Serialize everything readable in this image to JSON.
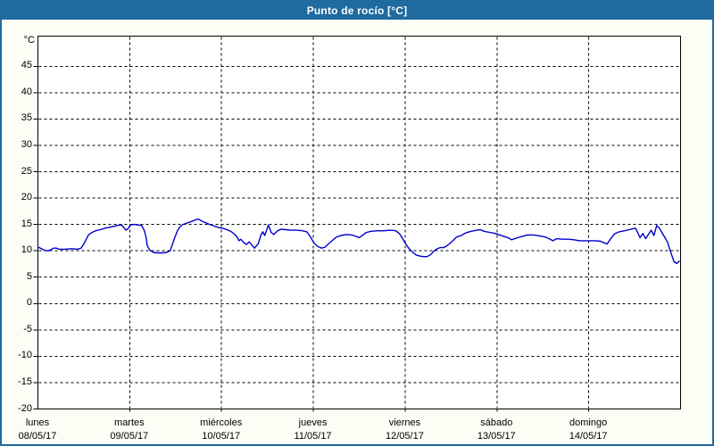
{
  "window": {
    "title": "Punto de rocío [°C]"
  },
  "colors": {
    "titlebar_bg": "#1F6A9F",
    "window_border": "#1F6A9F",
    "title_text": "#FFFFFF",
    "panel_bg": "#FCFDF5",
    "plot_bg": "#FFFFFF",
    "grid": "#000000",
    "axis_text": "#000000",
    "series_line": "#0000CC"
  },
  "chart_data": {
    "type": "line",
    "title": "Punto de rocío [°C]",
    "ylabel": "°C",
    "ylim": [
      -20,
      50
    ],
    "y_ticks": [
      45,
      40,
      35,
      30,
      25,
      20,
      15,
      10,
      5,
      0,
      -5,
      -10,
      -15,
      -20
    ],
    "grid": "dashed",
    "legend": "none",
    "x_axis": {
      "range_days": [
        0,
        7
      ],
      "days": [
        {
          "name": "lunes",
          "date": "08/05/17"
        },
        {
          "name": "martes",
          "date": "09/05/17"
        },
        {
          "name": "miércoles",
          "date": "10/05/17"
        },
        {
          "name": "jueves",
          "date": "11/05/17"
        },
        {
          "name": "viernes",
          "date": "12/05/17"
        },
        {
          "name": "sábado",
          "date": "13/05/17"
        },
        {
          "name": "domingo",
          "date": "14/05/17"
        }
      ]
    },
    "series": [
      {
        "name": "Punto de rocío",
        "color": "#0000CC",
        "points": [
          [
            0.0,
            10.7
          ],
          [
            0.04,
            10.4
          ],
          [
            0.07,
            10.1
          ],
          [
            0.11,
            10.0
          ],
          [
            0.14,
            10.2
          ],
          [
            0.17,
            10.5
          ],
          [
            0.2,
            10.5
          ],
          [
            0.23,
            10.3
          ],
          [
            0.29,
            10.3
          ],
          [
            0.37,
            10.4
          ],
          [
            0.43,
            10.3
          ],
          [
            0.47,
            10.5
          ],
          [
            0.5,
            11.3
          ],
          [
            0.53,
            12.3
          ],
          [
            0.55,
            13.0
          ],
          [
            0.59,
            13.5
          ],
          [
            0.63,
            13.8
          ],
          [
            0.68,
            14.0
          ],
          [
            0.73,
            14.3
          ],
          [
            0.79,
            14.5
          ],
          [
            0.84,
            14.7
          ],
          [
            0.89,
            14.9
          ],
          [
            0.92,
            14.8
          ],
          [
            0.94,
            14.3
          ],
          [
            0.96,
            13.9
          ],
          [
            0.98,
            14.2
          ],
          [
            1.01,
            14.9
          ],
          [
            1.05,
            15.0
          ],
          [
            1.09,
            14.9
          ],
          [
            1.13,
            14.8
          ],
          [
            1.16,
            13.8
          ],
          [
            1.18,
            12.4
          ],
          [
            1.19,
            11.0
          ],
          [
            1.22,
            10.1
          ],
          [
            1.26,
            9.7
          ],
          [
            1.31,
            9.6
          ],
          [
            1.36,
            9.6
          ],
          [
            1.4,
            9.7
          ],
          [
            1.44,
            10.0
          ],
          [
            1.46,
            11.0
          ],
          [
            1.49,
            12.5
          ],
          [
            1.52,
            13.8
          ],
          [
            1.55,
            14.6
          ],
          [
            1.58,
            15.0
          ],
          [
            1.63,
            15.3
          ],
          [
            1.68,
            15.6
          ],
          [
            1.72,
            15.9
          ],
          [
            1.75,
            16.0
          ],
          [
            1.79,
            15.6
          ],
          [
            1.83,
            15.3
          ],
          [
            1.87,
            15.0
          ],
          [
            1.92,
            14.7
          ],
          [
            1.97,
            14.4
          ],
          [
            2.01,
            14.3
          ],
          [
            2.06,
            14.0
          ],
          [
            2.1,
            13.7
          ],
          [
            2.14,
            13.2
          ],
          [
            2.17,
            12.6
          ],
          [
            2.19,
            11.9
          ],
          [
            2.21,
            12.2
          ],
          [
            2.24,
            11.6
          ],
          [
            2.27,
            11.2
          ],
          [
            2.3,
            11.7
          ],
          [
            2.33,
            11.1
          ],
          [
            2.36,
            10.5
          ],
          [
            2.4,
            11.4
          ],
          [
            2.43,
            13.0
          ],
          [
            2.45,
            13.6
          ],
          [
            2.47,
            12.9
          ],
          [
            2.51,
            14.9
          ],
          [
            2.54,
            13.5
          ],
          [
            2.57,
            13.1
          ],
          [
            2.61,
            13.8
          ],
          [
            2.65,
            14.1
          ],
          [
            2.7,
            14.0
          ],
          [
            2.76,
            13.9
          ],
          [
            2.82,
            13.9
          ],
          [
            2.88,
            13.8
          ],
          [
            2.93,
            13.6
          ],
          [
            2.97,
            12.6
          ],
          [
            3.01,
            11.4
          ],
          [
            3.05,
            10.8
          ],
          [
            3.09,
            10.5
          ],
          [
            3.13,
            10.7
          ],
          [
            3.17,
            11.4
          ],
          [
            3.21,
            12.0
          ],
          [
            3.25,
            12.6
          ],
          [
            3.3,
            12.9
          ],
          [
            3.36,
            13.1
          ],
          [
            3.42,
            13.0
          ],
          [
            3.47,
            12.7
          ],
          [
            3.5,
            12.5
          ],
          [
            3.54,
            13.0
          ],
          [
            3.58,
            13.5
          ],
          [
            3.63,
            13.7
          ],
          [
            3.7,
            13.8
          ],
          [
            3.77,
            13.8
          ],
          [
            3.84,
            13.9
          ],
          [
            3.9,
            13.8
          ],
          [
            3.94,
            13.2
          ],
          [
            3.97,
            12.4
          ],
          [
            4.0,
            11.5
          ],
          [
            4.03,
            10.7
          ],
          [
            4.06,
            10.1
          ],
          [
            4.09,
            9.6
          ],
          [
            4.12,
            9.2
          ],
          [
            4.16,
            9.0
          ],
          [
            4.2,
            8.9
          ],
          [
            4.24,
            8.9
          ],
          [
            4.28,
            9.3
          ],
          [
            4.31,
            9.9
          ],
          [
            4.34,
            10.3
          ],
          [
            4.38,
            10.6
          ],
          [
            4.42,
            10.6
          ],
          [
            4.45,
            10.9
          ],
          [
            4.48,
            11.3
          ],
          [
            4.52,
            11.9
          ],
          [
            4.56,
            12.6
          ],
          [
            4.61,
            12.9
          ],
          [
            4.66,
            13.4
          ],
          [
            4.72,
            13.7
          ],
          [
            4.78,
            13.9
          ],
          [
            4.82,
            14.0
          ],
          [
            4.86,
            13.7
          ],
          [
            4.92,
            13.5
          ],
          [
            4.98,
            13.3
          ],
          [
            5.03,
            13.0
          ],
          [
            5.08,
            12.7
          ],
          [
            5.12,
            12.5
          ],
          [
            5.16,
            12.1
          ],
          [
            5.21,
            12.4
          ],
          [
            5.27,
            12.7
          ],
          [
            5.33,
            13.0
          ],
          [
            5.4,
            13.0
          ],
          [
            5.47,
            12.8
          ],
          [
            5.53,
            12.6
          ],
          [
            5.58,
            12.2
          ],
          [
            5.61,
            11.9
          ],
          [
            5.65,
            12.3
          ],
          [
            5.71,
            12.2
          ],
          [
            5.78,
            12.2
          ],
          [
            5.84,
            12.1
          ],
          [
            5.9,
            11.9
          ],
          [
            5.96,
            11.9
          ],
          [
            6.02,
            11.9
          ],
          [
            6.08,
            11.9
          ],
          [
            6.13,
            11.8
          ],
          [
            6.17,
            11.5
          ],
          [
            6.2,
            11.3
          ],
          [
            6.24,
            12.3
          ],
          [
            6.28,
            13.2
          ],
          [
            6.33,
            13.6
          ],
          [
            6.39,
            13.8
          ],
          [
            6.44,
            14.0
          ],
          [
            6.48,
            14.2
          ],
          [
            6.51,
            14.3
          ],
          [
            6.54,
            13.2
          ],
          [
            6.56,
            12.5
          ],
          [
            6.59,
            13.3
          ],
          [
            6.62,
            12.3
          ],
          [
            6.65,
            13.1
          ],
          [
            6.68,
            13.9
          ],
          [
            6.71,
            12.9
          ],
          [
            6.74,
            14.8
          ],
          [
            6.77,
            14.3
          ],
          [
            6.8,
            13.4
          ],
          [
            6.83,
            12.5
          ],
          [
            6.86,
            11.6
          ],
          [
            6.88,
            10.4
          ],
          [
            6.91,
            8.9
          ],
          [
            6.93,
            7.9
          ],
          [
            6.96,
            7.6
          ],
          [
            6.99,
            8.1
          ]
        ]
      }
    ]
  }
}
